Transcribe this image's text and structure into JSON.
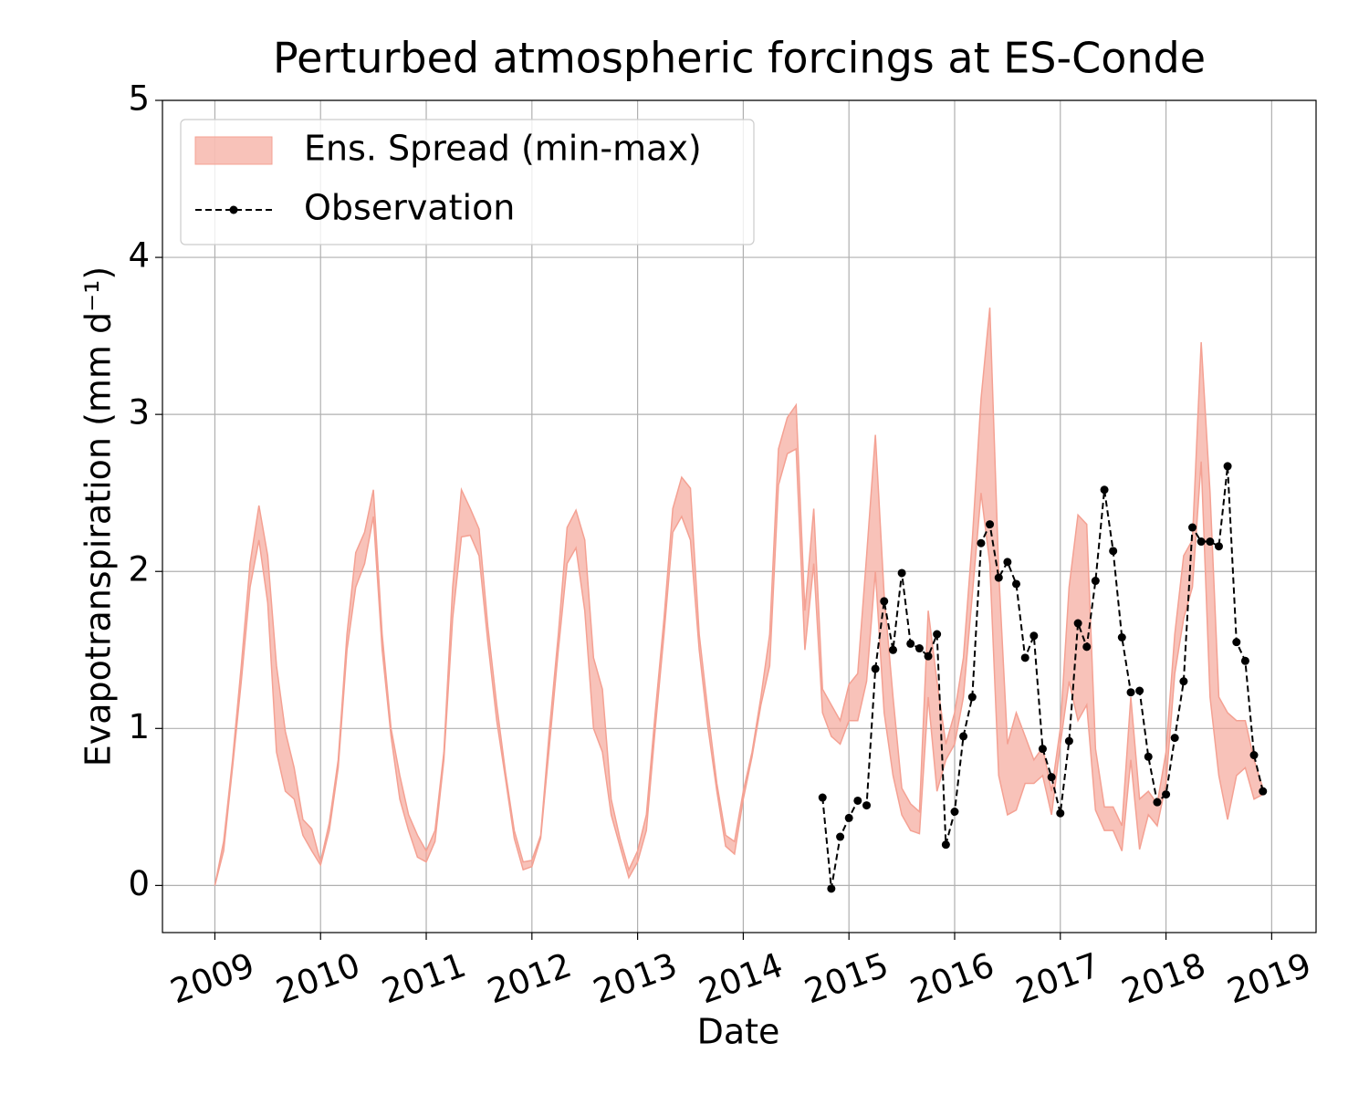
{
  "chart_data": {
    "type": "line",
    "title": "Perturbed atmospheric forcings at ES-Conde",
    "x_label": "Date",
    "y_label": "Evapotranspiration  (mm d⁻¹)",
    "xlim": [
      2008.504,
      2019.42
    ],
    "ylim": [
      -0.3,
      5
    ],
    "xticks": [
      2009,
      2010,
      2011,
      2012,
      2013,
      2014,
      2015,
      2016,
      2017,
      2018,
      2019
    ],
    "yticks": [
      0,
      1,
      2,
      3,
      4,
      5
    ],
    "grid": true,
    "legend": "upper left",
    "x": [
      2009,
      2009.083,
      2009.167,
      2009.25,
      2009.333,
      2009.417,
      2009.5,
      2009.583,
      2009.667,
      2009.75,
      2009.833,
      2009.917,
      2010,
      2010.083,
      2010.167,
      2010.25,
      2010.333,
      2010.417,
      2010.5,
      2010.583,
      2010.667,
      2010.75,
      2010.833,
      2010.917,
      2011,
      2011.083,
      2011.167,
      2011.25,
      2011.333,
      2011.417,
      2011.5,
      2011.583,
      2011.667,
      2011.75,
      2011.833,
      2011.917,
      2012,
      2012.083,
      2012.167,
      2012.25,
      2012.333,
      2012.417,
      2012.5,
      2012.583,
      2012.667,
      2012.75,
      2012.833,
      2012.917,
      2013,
      2013.083,
      2013.167,
      2013.25,
      2013.333,
      2013.417,
      2013.5,
      2013.583,
      2013.667,
      2013.75,
      2013.833,
      2013.917,
      2014,
      2014.083,
      2014.167,
      2014.25,
      2014.333,
      2014.417,
      2014.5,
      2014.583,
      2014.667,
      2014.75,
      2014.833,
      2014.917,
      2015,
      2015.083,
      2015.167,
      2015.25,
      2015.333,
      2015.417,
      2015.5,
      2015.583,
      2015.667,
      2015.75,
      2015.833,
      2015.917,
      2016,
      2016.083,
      2016.167,
      2016.25,
      2016.333,
      2016.417,
      2016.5,
      2016.583,
      2016.667,
      2016.75,
      2016.833,
      2016.917,
      2017,
      2017.083,
      2017.167,
      2017.25,
      2017.333,
      2017.417,
      2017.5,
      2017.583,
      2017.667,
      2017.75,
      2017.833,
      2017.917,
      2018,
      2018.083,
      2018.167,
      2018.25,
      2018.333,
      2018.417,
      2018.5,
      2018.583,
      2018.667,
      2018.75,
      2018.833,
      2018.917
    ],
    "series": [
      {
        "name": "Ens. Spread (min-max)",
        "color": "#f4a193",
        "min": [
          0,
          0.22,
          0.75,
          1.3,
          1.9,
          2.2,
          1.8,
          0.85,
          0.6,
          0.55,
          0.32,
          0.22,
          0.13,
          0.35,
          0.75,
          1.5,
          1.9,
          2.05,
          2.35,
          1.5,
          0.95,
          0.55,
          0.35,
          0.18,
          0.15,
          0.28,
          0.8,
          1.7,
          2.22,
          2.23,
          2.1,
          1.55,
          1.05,
          0.68,
          0.3,
          0.1,
          0.12,
          0.3,
          0.9,
          1.5,
          2.05,
          2.15,
          1.75,
          1.0,
          0.85,
          0.45,
          0.25,
          0.05,
          0.15,
          0.35,
          1.0,
          1.6,
          2.25,
          2.35,
          2.2,
          1.5,
          1.0,
          0.6,
          0.25,
          0.2,
          0.55,
          0.82,
          1.15,
          1.4,
          2.55,
          2.75,
          2.78,
          1.5,
          2.05,
          1.1,
          0.95,
          0.9,
          1.05,
          1.05,
          1.3,
          2.0,
          1.1,
          0.7,
          0.45,
          0.35,
          0.33,
          1.2,
          0.6,
          0.8,
          0.9,
          1.2,
          1.85,
          2.5,
          2.05,
          0.7,
          0.45,
          0.48,
          0.65,
          0.65,
          0.7,
          0.45,
          0.9,
          1.3,
          1.05,
          1.15,
          0.48,
          0.35,
          0.35,
          0.22,
          0.8,
          0.23,
          0.45,
          0.38,
          0.65,
          1.35,
          1.7,
          1.9,
          2.7,
          1.2,
          0.7,
          0.42,
          0.7,
          0.75,
          0.55,
          0.58
        ],
        "max": [
          0,
          0.28,
          0.8,
          1.4,
          2.05,
          2.42,
          2.1,
          1.4,
          0.98,
          0.75,
          0.42,
          0.36,
          0.15,
          0.4,
          0.8,
          1.6,
          2.12,
          2.25,
          2.52,
          1.6,
          1.0,
          0.7,
          0.45,
          0.32,
          0.22,
          0.35,
          0.85,
          1.9,
          2.52,
          2.4,
          2.27,
          1.65,
          1.15,
          0.72,
          0.35,
          0.15,
          0.16,
          0.32,
          1.0,
          1.6,
          2.28,
          2.39,
          2.2,
          1.45,
          1.25,
          0.55,
          0.3,
          0.1,
          0.22,
          0.45,
          1.1,
          1.7,
          2.4,
          2.6,
          2.53,
          1.6,
          1.1,
          0.65,
          0.32,
          0.28,
          0.6,
          0.85,
          1.2,
          1.6,
          2.78,
          2.98,
          3.06,
          1.75,
          2.4,
          1.25,
          1.15,
          1.05,
          1.28,
          1.35,
          2.1,
          2.87,
          1.85,
          1.2,
          0.62,
          0.52,
          0.47,
          1.75,
          1.3,
          0.9,
          1.1,
          1.45,
          2.2,
          3.1,
          3.68,
          2.0,
          0.9,
          1.1,
          0.95,
          0.8,
          0.88,
          0.6,
          1.0,
          1.9,
          2.36,
          2.3,
          0.87,
          0.5,
          0.5,
          0.38,
          1.2,
          0.55,
          0.6,
          0.52,
          0.85,
          1.6,
          2.1,
          2.2,
          3.46,
          2.5,
          1.2,
          1.1,
          1.05,
          1.05,
          0.8,
          0.62
        ]
      },
      {
        "name": "Observation",
        "color": "#000000",
        "x": [
          2014.75,
          2014.833,
          2014.917,
          2015,
          2015.083,
          2015.167,
          2015.25,
          2015.333,
          2015.417,
          2015.5,
          2015.583,
          2015.667,
          2015.75,
          2015.833,
          2015.917,
          2016,
          2016.083,
          2016.167,
          2016.25,
          2016.333,
          2016.417,
          2016.5,
          2016.583,
          2016.667,
          2016.75,
          2016.833,
          2016.917,
          2017,
          2017.083,
          2017.167,
          2017.25,
          2017.333,
          2017.417,
          2017.5,
          2017.583,
          2017.667,
          2017.75,
          2017.833,
          2017.917,
          2018,
          2018.083,
          2018.167,
          2018.25,
          2018.333,
          2018.417,
          2018.5,
          2018.583,
          2018.667,
          2018.75,
          2018.833,
          2018.917
        ],
        "values": [
          0.56,
          -0.02,
          0.31,
          0.43,
          0.54,
          0.51,
          1.38,
          1.81,
          1.5,
          1.99,
          1.54,
          1.51,
          1.46,
          1.6,
          0.26,
          0.47,
          0.95,
          1.2,
          2.18,
          2.3,
          1.96,
          2.06,
          1.92,
          1.45,
          1.59,
          0.87,
          0.69,
          0.46,
          0.92,
          1.67,
          1.52,
          1.94,
          2.52,
          2.13,
          1.58,
          1.23,
          1.24,
          0.82,
          0.53,
          0.58,
          0.94,
          1.3,
          2.28,
          2.19,
          2.19,
          2.16,
          2.67,
          1.55,
          1.43,
          0.83,
          0.6
        ]
      }
    ]
  }
}
